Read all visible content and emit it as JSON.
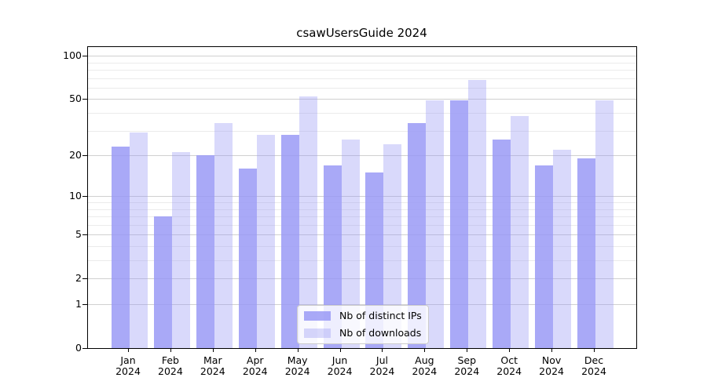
{
  "chart_data": {
    "type": "bar",
    "title": "csawUsersGuide 2024",
    "categories": [
      "Jan 2024",
      "Feb 2024",
      "Mar 2024",
      "Apr 2024",
      "May 2024",
      "Jun 2024",
      "Jul 2024",
      "Aug 2024",
      "Sep 2024",
      "Oct 2024",
      "Nov 2024",
      "Dec 2024"
    ],
    "series": [
      {
        "name": "Nb of distinct IPs",
        "color": "rgba(150,150,245,0.82)",
        "values": [
          23,
          7,
          20,
          16,
          28,
          17,
          15,
          34,
          49,
          26,
          17,
          19
        ]
      },
      {
        "name": "Nb of downloads",
        "color": "rgba(150,150,245,0.36)",
        "values": [
          29,
          21,
          34,
          28,
          52,
          26,
          24,
          49,
          68,
          38,
          22,
          49
        ]
      }
    ],
    "yscale": "log10(1+x)",
    "ylim": [
      0,
      116
    ],
    "yticks": [
      0,
      1,
      2,
      5,
      10,
      20,
      50,
      100
    ],
    "yticks_minor": [
      3,
      4,
      6,
      7,
      8,
      9,
      30,
      40,
      60,
      70,
      80,
      90
    ],
    "xlabel": "",
    "ylabel": "",
    "grid": "horizontal",
    "legend_position": "lower center",
    "colors": {
      "grid_major": "#d0d0d0",
      "grid_minor": "#ebebeb",
      "axis": "#000000",
      "background": "#ffffff"
    }
  }
}
